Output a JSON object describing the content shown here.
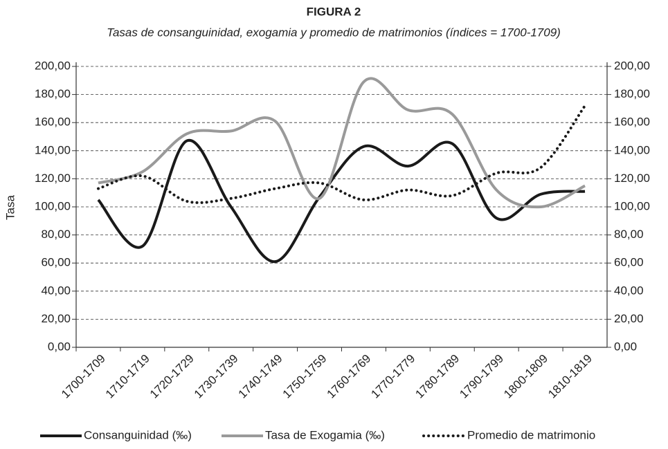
{
  "chart_data": {
    "type": "line",
    "title": "FIGURA 2",
    "subtitle": "Tasas de consanguinidad, exogamia y promedio de matrimonios (índices = 1700-1709)",
    "y_label": "Tasa",
    "categories": [
      "1700-1709",
      "1710-1719",
      "1720-1729",
      "1730-1739",
      "1740-1749",
      "1750-1759",
      "1760-1769",
      "1770-1779",
      "1780-1789",
      "1790-1799",
      "1800-1809",
      "1810-1819"
    ],
    "series": [
      {
        "name": "Consanguinidad (‰)",
        "color": "#1a1a1a",
        "style": "solid",
        "values": [
          105,
          72,
          147,
          100,
          61,
          107,
          143,
          129,
          145,
          92,
          109,
          111
        ]
      },
      {
        "name": "Tasa de Exogamia (‰)",
        "color": "#9a9a9a",
        "style": "solid",
        "values": [
          117,
          125,
          152,
          154,
          161,
          106,
          189,
          169,
          166,
          112,
          100,
          115
        ]
      },
      {
        "name": "Promedio de matrimonio",
        "color": "#1a1a1a",
        "style": "dotted",
        "values": [
          113,
          122,
          104,
          106,
          113,
          117,
          105,
          112,
          108,
          124,
          128,
          172
        ]
      }
    ],
    "ylim": [
      0,
      200
    ],
    "yticks": [
      {
        "value": 0,
        "label": "0,00"
      },
      {
        "value": 20,
        "label": "20,00"
      },
      {
        "value": 40,
        "label": "40,00"
      },
      {
        "value": 60,
        "label": "60,00"
      },
      {
        "value": 80,
        "label": "80,00"
      },
      {
        "value": 100,
        "label": "100,00"
      },
      {
        "value": 120,
        "label": "120,00"
      },
      {
        "value": 140,
        "label": "140,00"
      },
      {
        "value": 160,
        "label": "160,00"
      },
      {
        "value": 180,
        "label": "180,00"
      },
      {
        "value": 200,
        "label": "200,00"
      }
    ],
    "y2lim": [
      0,
      200
    ],
    "y2ticks": [
      {
        "value": 0,
        "label": "0,00"
      },
      {
        "value": 20,
        "label": "20,00"
      },
      {
        "value": 40,
        "label": "40,00"
      },
      {
        "value": 60,
        "label": "60,00"
      },
      {
        "value": 80,
        "label": "80,00"
      },
      {
        "value": 100,
        "label": "100,00"
      },
      {
        "value": 120,
        "label": "120,00"
      },
      {
        "value": 140,
        "label": "140,00"
      },
      {
        "value": 160,
        "label": "160,00"
      },
      {
        "value": 180,
        "label": "180,00"
      },
      {
        "value": 200,
        "label": "200,00"
      }
    ],
    "grid": true,
    "legend": "bottom"
  }
}
